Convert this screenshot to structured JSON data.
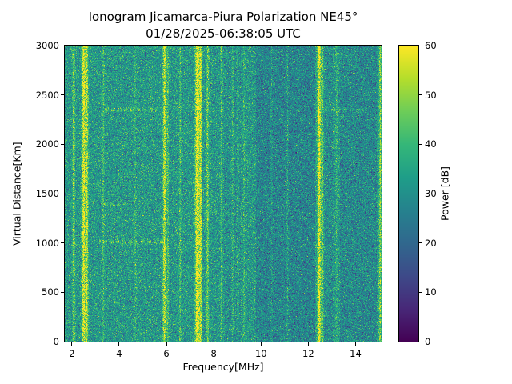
{
  "figure": {
    "background": "#ffffff",
    "text_color": "#000000"
  },
  "chart_data": {
    "type": "heatmap",
    "title": "Ionogram Jicamarca-Piura Polarization NE45°",
    "subtitle": "01/28/2025-06:38:05 UTC",
    "xlabel": "Frequency[MHz]",
    "ylabel": "Virtual Distance[Km]",
    "xlim": [
      1.7,
      15.1
    ],
    "ylim": [
      0,
      3000
    ],
    "xticks": [
      2,
      4,
      6,
      8,
      10,
      12,
      14
    ],
    "yticks": [
      0,
      500,
      1000,
      1500,
      2000,
      2500,
      3000
    ],
    "grid": false,
    "colorbar": {
      "label": "Power [dB]",
      "min": 0,
      "max": 60,
      "ticks": [
        0,
        10,
        20,
        30,
        40,
        50,
        60
      ],
      "colormap": "viridis",
      "position": "right"
    },
    "noise": {
      "mean": 32,
      "sd": 6.5,
      "seed": 1234
    },
    "dark_bands": [
      {
        "from": 8.45,
        "to": 9.15,
        "delta": -2
      },
      {
        "from": 9.8,
        "to": 12.3,
        "delta": -5
      },
      {
        "from": 12.7,
        "to": 13.05,
        "delta": -3
      },
      {
        "from": 13.35,
        "to": 14.9,
        "delta": -4
      }
    ],
    "bright_lines": [
      {
        "freq": 2.08,
        "width": 0.05,
        "boost": 16
      },
      {
        "freq": 2.5,
        "width": 0.08,
        "boost": 26
      },
      {
        "freq": 2.64,
        "width": 0.05,
        "boost": 20
      },
      {
        "freq": 3.33,
        "width": 0.04,
        "boost": 9
      },
      {
        "freq": 4.68,
        "width": 0.04,
        "boost": 6
      },
      {
        "freq": 5.92,
        "width": 0.07,
        "boost": 22
      },
      {
        "freq": 6.06,
        "width": 0.04,
        "boost": 10
      },
      {
        "freq": 6.58,
        "width": 0.04,
        "boost": 9
      },
      {
        "freq": 7.31,
        "width": 0.09,
        "boost": 30
      },
      {
        "freq": 7.45,
        "width": 0.05,
        "boost": 20
      },
      {
        "freq": 7.74,
        "width": 0.05,
        "boost": 13
      },
      {
        "freq": 8.33,
        "width": 0.04,
        "boost": 10
      },
      {
        "freq": 8.8,
        "width": 0.04,
        "boost": 8
      },
      {
        "freq": 9.02,
        "width": 0.04,
        "boost": 7
      },
      {
        "freq": 9.28,
        "width": 0.04,
        "boost": 7
      },
      {
        "freq": 10.45,
        "width": 0.04,
        "boost": 5
      },
      {
        "freq": 11.12,
        "width": 0.04,
        "boost": 7
      },
      {
        "freq": 12.46,
        "width": 0.08,
        "boost": 26
      },
      {
        "freq": 12.6,
        "width": 0.04,
        "boost": 12
      },
      {
        "freq": 13.2,
        "width": 0.04,
        "boost": 6
      },
      {
        "freq": 15.04,
        "width": 0.05,
        "boost": 16
      }
    ],
    "horizontal_streaks": [
      {
        "alt": 1010,
        "from": 3.15,
        "to": 5.85,
        "boost": 15
      },
      {
        "alt": 1390,
        "from": 3.35,
        "to": 4.35,
        "boost": 12
      },
      {
        "alt": 2350,
        "from": 3.3,
        "to": 5.6,
        "boost": 15
      },
      {
        "alt": 2350,
        "from": 12.7,
        "to": 14.35,
        "boost": 12
      }
    ]
  }
}
